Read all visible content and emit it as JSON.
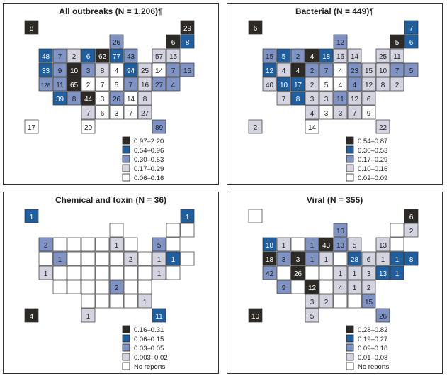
{
  "colors": [
    "#2d2a26",
    "#1f5fa0",
    "#7f93c4",
    "#d3d4e0",
    "#ffffff"
  ],
  "panels": [
    {
      "title": "All outbreaks (N = 1,206)¶",
      "legend": [
        "0.97–2.20",
        "0.54–0.96",
        "0.30–0.53",
        "0.17–0.29",
        "0.06–0.16"
      ],
      "states": {
        "WA": [
          48,
          1
        ],
        "OR": [
          33,
          1
        ],
        "CA": [
          128,
          2
        ],
        "NV": [
          9,
          2
        ],
        "ID": [
          7,
          2
        ],
        "MT": [
          2,
          3
        ],
        "WY": [
          10,
          0
        ],
        "UT": [
          11,
          2
        ],
        "CO": [
          65,
          0
        ],
        "AZ": [
          39,
          1
        ],
        "NM": [
          8,
          2
        ],
        "ND": [
          6,
          1
        ],
        "SD": [
          3,
          2
        ],
        "NE": [
          2,
          4
        ],
        "KS": [
          44,
          0
        ],
        "OK": [
          7,
          3
        ],
        "TX": [
          20,
          4
        ],
        "MN": [
          62,
          0
        ],
        "IA": [
          8,
          3
        ],
        "MO": [
          7,
          4
        ],
        "AR": [
          3,
          4
        ],
        "LA": [
          6,
          4
        ],
        "WI": [
          26,
          2
        ],
        "IL": [
          77,
          1
        ],
        "MI": [
          43,
          2
        ],
        "IN": [
          4,
          4
        ],
        "OH": [
          94,
          1
        ],
        "KY": [
          5,
          4
        ],
        "TN": [
          26,
          2
        ],
        "MS": [
          3,
          4
        ],
        "AL": [
          7,
          4
        ],
        "GA": [
          27,
          3
        ],
        "FL": [
          89,
          2
        ],
        "SC": [
          8,
          3
        ],
        "NC": [
          14,
          4
        ],
        "VA": [
          16,
          3
        ],
        "WV": [
          7,
          2
        ],
        "PA": [
          25,
          3
        ],
        "NY": [
          57,
          3
        ],
        "ME": [
          29,
          0
        ],
        "VT": [
          6,
          0
        ],
        "NH": [
          8,
          1
        ],
        "MA": [
          15,
          3
        ],
        "CT": [
          7,
          2
        ],
        "RI": [
          15,
          2
        ],
        "NJ": [
          14,
          4
        ],
        "DE": [
          4,
          2
        ],
        "MD": [
          27,
          2
        ],
        "AK": [
          8,
          0
        ],
        "HI": [
          17,
          4
        ]
      }
    },
    {
      "title": "Bacterial (N = 449)¶",
      "legend": [
        "0.54–0.87",
        "0.30–0.53",
        "0.17–0.29",
        "0.10–0.16",
        "0.02–0.09"
      ],
      "states": {
        "WA": [
          15,
          2
        ],
        "OR": [
          12,
          1
        ],
        "CA": [
          40,
          3
        ],
        "NV": [
          4,
          3
        ],
        "ID": [
          5,
          1
        ],
        "MT": [
          2,
          2
        ],
        "WY": [
          4,
          0
        ],
        "UT": [
          10,
          1
        ],
        "CO": [
          17,
          1
        ],
        "AZ": [
          7,
          3
        ],
        "NM": [
          8,
          1
        ],
        "ND": [
          4,
          0
        ],
        "SD": [
          2,
          2
        ],
        "NE": [
          2,
          3
        ],
        "KS": [
          3,
          3
        ],
        "OK": [
          4,
          3
        ],
        "TX": [
          14,
          4
        ],
        "MN": [
          18,
          1
        ],
        "IA": [
          7,
          2
        ],
        "MO": [
          5,
          4
        ],
        "AR": [
          3,
          3
        ],
        "LA": [
          3,
          4
        ],
        "WI": [
          12,
          2
        ],
        "IL": [
          16,
          3
        ],
        "MI": [
          14,
          3
        ],
        "IN": [
          4,
          4
        ],
        "OH": [
          23,
          2
        ],
        "KY": [
          4,
          4
        ],
        "TN": [
          11,
          2
        ],
        "MS": [
          3,
          3
        ],
        "AL": [
          7,
          3
        ],
        "GA": [
          9,
          4
        ],
        "FL": [
          22,
          3
        ],
        "SC": [
          6,
          3
        ],
        "NC": [
          12,
          3
        ],
        "VA": [
          12,
          3
        ],
        "WV": [
          4,
          2
        ],
        "PA": [
          15,
          3
        ],
        "NY": [
          25,
          3
        ],
        "ME": [
          7,
          1
        ],
        "VT": [
          5,
          0
        ],
        "NH": [
          6,
          1
        ],
        "MA": [
          11,
          3
        ],
        "RI": [
          5,
          2
        ],
        "CT": [
          7,
          2
        ],
        "NJ": [
          10,
          3
        ],
        "DE": [
          2,
          3
        ],
        "MD": [
          8,
          3
        ],
        "AK": [
          6,
          0
        ],
        "HI": [
          2,
          3
        ]
      }
    },
    {
      "title": "Chemical and toxin (N = 36)",
      "legend": [
        "0.16–0.31",
        "0.06–0.15",
        "0.03–0.05",
        "0.003–0.02",
        "No reports"
      ],
      "states": {
        "WA": [
          2,
          2
        ],
        "CA": [
          1,
          3
        ],
        "NV": [
          1,
          2
        ],
        "TX": [
          1,
          3
        ],
        "IL": [
          1,
          3
        ],
        "OH": [
          2,
          3
        ],
        "TN": [
          2,
          2
        ],
        "GA": [
          1,
          3
        ],
        "FL": [
          11,
          1
        ],
        "NY": [
          5,
          2
        ],
        "ME": [
          1,
          1
        ],
        "CT": [
          1,
          1
        ],
        "NJ": [
          1,
          3
        ],
        "MD": [
          1,
          3
        ],
        "AK": [
          1,
          1
        ],
        "HI": [
          4,
          0
        ]
      }
    },
    {
      "title": "Viral (N = 355)",
      "legend": [
        "0.28–0.82",
        "0.19–0.27",
        "0.09–0.18",
        "0.01–0.08",
        "No reports"
      ],
      "states": {
        "WA": [
          18,
          1
        ],
        "OR": [
          18,
          0
        ],
        "ID": [
          1,
          3
        ],
        "CA": [
          42,
          2
        ],
        "NV": [
          3,
          2
        ],
        "WY": [
          3,
          0
        ],
        "CO": [
          26,
          0
        ],
        "AZ": [
          9,
          2
        ],
        "ND": [
          1,
          2
        ],
        "SD": [
          1,
          2
        ],
        "MN": [
          43,
          0
        ],
        "KS": [
          12,
          0
        ],
        "OK": [
          3,
          3
        ],
        "TX": [
          5,
          3
        ],
        "LA": [
          2,
          3
        ],
        "IA": [
          1,
          3
        ],
        "WI": [
          10,
          2
        ],
        "IL": [
          13,
          2
        ],
        "MI": [
          5,
          3
        ],
        "OH": [
          28,
          1
        ],
        "KY": [
          1,
          3
        ],
        "WV": [
          1,
          3
        ],
        "VA": [
          3,
          3
        ],
        "TN": [
          4,
          3
        ],
        "NC": [
          1,
          3
        ],
        "SC": [
          2,
          3
        ],
        "GA": [
          15,
          2
        ],
        "FL": [
          26,
          2
        ],
        "PA": [
          6,
          3
        ],
        "NY": [
          13,
          3
        ],
        "ME": [
          6,
          0
        ],
        "NH": [
          2,
          3
        ],
        "CT": [
          1,
          1
        ],
        "RI": [
          8,
          1
        ],
        "NJ": [
          1,
          3
        ],
        "DE": [
          1,
          1
        ],
        "MD": [
          13,
          1
        ],
        "HI": [
          10,
          0
        ]
      }
    }
  ]
}
